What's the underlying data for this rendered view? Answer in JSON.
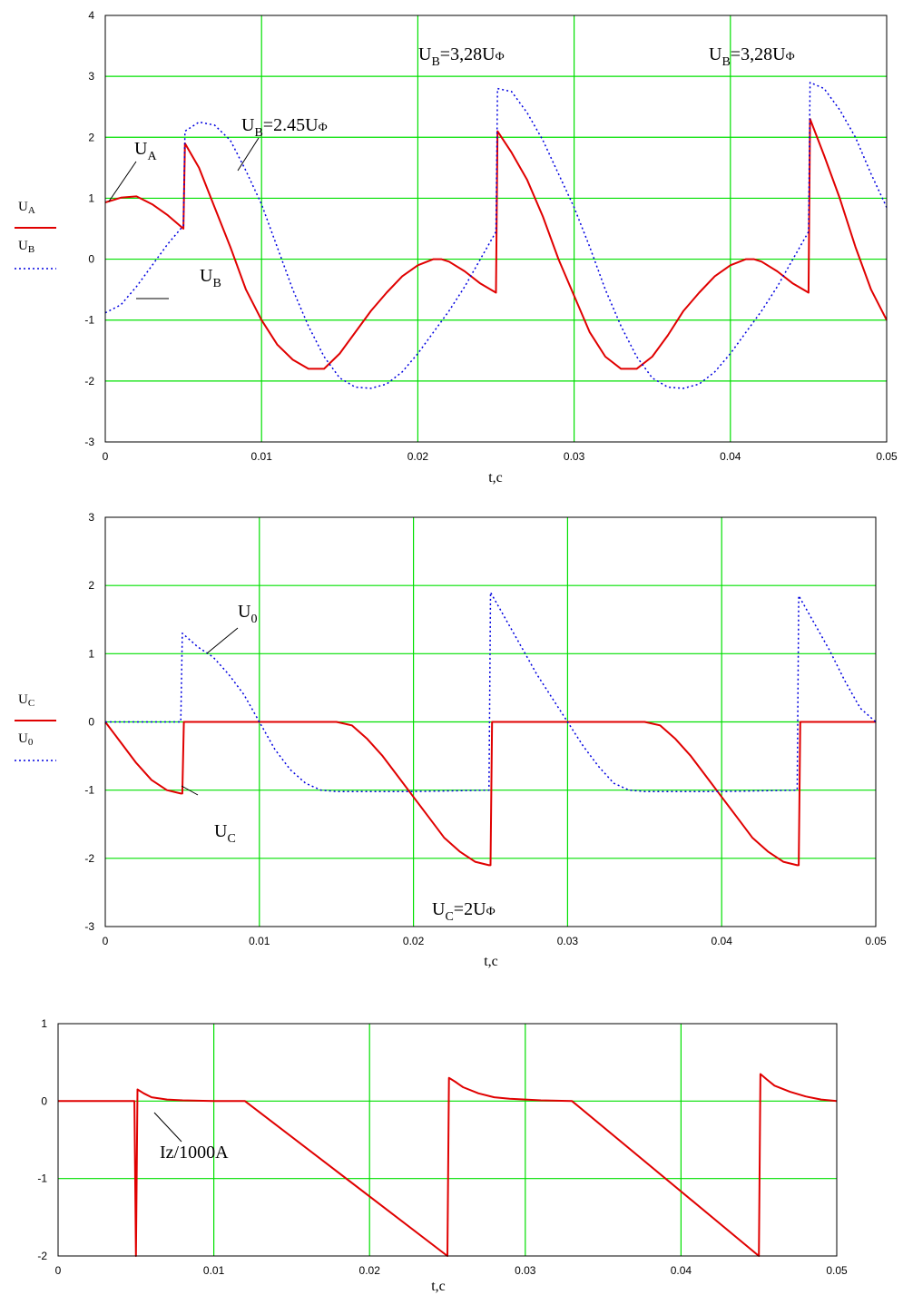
{
  "chart_data": [
    {
      "type": "line",
      "xlabel": "t,c",
      "xlim": [
        0,
        0.05
      ],
      "ylim": [
        -3,
        4
      ],
      "xticks": [
        "0",
        "0.01",
        "0.02",
        "0.03",
        "0.04",
        "0.05"
      ],
      "yticks": [
        "-3",
        "-2",
        "-1",
        "0",
        "1",
        "2",
        "3",
        "4"
      ],
      "grid": true,
      "legend": {
        "placement": "left",
        "entries": [
          {
            "label_main": "U",
            "label_sub": "A",
            "style": "solid",
            "color": "#e00000"
          },
          {
            "label_main": "U",
            "label_sub": "B",
            "style": "dotted",
            "color": "#0000e0"
          }
        ]
      },
      "annotations": [
        {
          "main": "U",
          "sub": "A"
        },
        {
          "main": "U",
          "sub": "B"
        },
        {
          "main": "U",
          "sub": "B",
          "rest": "=2.45U",
          "tail": "Ф"
        },
        {
          "main": "U",
          "sub": "B",
          "rest": "=3,28U",
          "tail": "Ф"
        },
        {
          "main": "U",
          "sub": "B",
          "rest": "=3,28U",
          "tail": "Ф"
        }
      ],
      "series": [
        {
          "color": "#e00000",
          "style": "solid",
          "x": [
            0,
            0.001,
            0.002,
            0.003,
            0.004,
            0.005,
            0.0051,
            0.006,
            0.007,
            0.008,
            0.009,
            0.01,
            0.011,
            0.012,
            0.013,
            0.014,
            0.015,
            0.016,
            0.017,
            0.018,
            0.019,
            0.02,
            0.021,
            0.0215,
            0.022,
            0.023,
            0.024,
            0.025,
            0.0251,
            0.026,
            0.027,
            0.028,
            0.029,
            0.03,
            0.031,
            0.032,
            0.033,
            0.034,
            0.035,
            0.036,
            0.037,
            0.038,
            0.039,
            0.04,
            0.041,
            0.0415,
            0.042,
            0.043,
            0.044,
            0.045,
            0.0451,
            0.046,
            0.047,
            0.048,
            0.049,
            0.05
          ],
          "y": [
            0.93,
            1.01,
            1.03,
            0.9,
            0.72,
            0.5,
            1.9,
            1.5,
            0.85,
            0.2,
            -0.5,
            -1.0,
            -1.4,
            -1.65,
            -1.8,
            -1.8,
            -1.55,
            -1.2,
            -0.85,
            -0.55,
            -0.28,
            -0.1,
            0,
            0,
            -0.04,
            -0.2,
            -0.4,
            -0.55,
            2.1,
            1.75,
            1.3,
            0.7,
            0,
            -0.6,
            -1.2,
            -1.6,
            -1.8,
            -1.8,
            -1.6,
            -1.25,
            -0.85,
            -0.55,
            -0.28,
            -0.1,
            0,
            0,
            -0.04,
            -0.2,
            -0.4,
            -0.55,
            2.3,
            1.7,
            1.0,
            0.2,
            -0.5,
            -1.0
          ]
        },
        {
          "color": "#0000e0",
          "style": "dotted",
          "x": [
            0,
            0.001,
            0.002,
            0.003,
            0.004,
            0.005,
            0.0051,
            0.006,
            0.007,
            0.008,
            0.009,
            0.01,
            0.011,
            0.012,
            0.013,
            0.014,
            0.015,
            0.016,
            0.017,
            0.018,
            0.019,
            0.02,
            0.021,
            0.022,
            0.023,
            0.024,
            0.025,
            0.0251,
            0.026,
            0.027,
            0.028,
            0.029,
            0.03,
            0.031,
            0.032,
            0.033,
            0.034,
            0.035,
            0.036,
            0.037,
            0.038,
            0.039,
            0.04,
            0.041,
            0.042,
            0.043,
            0.044,
            0.045,
            0.0451,
            0.046,
            0.047,
            0.048,
            0.049,
            0.05
          ],
          "y": [
            -0.88,
            -0.75,
            -0.45,
            -0.1,
            0.25,
            0.55,
            2.1,
            2.25,
            2.2,
            1.95,
            1.45,
            0.9,
            0.2,
            -0.5,
            -1.1,
            -1.6,
            -1.95,
            -2.1,
            -2.12,
            -2.05,
            -1.85,
            -1.55,
            -1.2,
            -0.85,
            -0.45,
            0.0,
            0.45,
            2.8,
            2.75,
            2.4,
            1.95,
            1.4,
            0.85,
            0.2,
            -0.5,
            -1.1,
            -1.6,
            -1.95,
            -2.1,
            -2.12,
            -2.05,
            -1.85,
            -1.55,
            -1.2,
            -0.85,
            -0.45,
            0.0,
            0.45,
            2.9,
            2.8,
            2.45,
            2.0,
            1.4,
            0.85
          ]
        }
      ]
    },
    {
      "type": "line",
      "xlabel": "t,c",
      "xlim": [
        0,
        0.05
      ],
      "ylim": [
        -3,
        3
      ],
      "xticks": [
        "0",
        "0.01",
        "0.02",
        "0.03",
        "0.04",
        "0.05"
      ],
      "yticks": [
        "-3",
        "-2",
        "-1",
        "0",
        "1",
        "2",
        "3"
      ],
      "grid": true,
      "legend": {
        "placement": "left",
        "entries": [
          {
            "label_main": "U",
            "label_sub": "C",
            "style": "solid",
            "color": "#e00000"
          },
          {
            "label_main": "U",
            "label_sub": "0",
            "style": "dotted",
            "color": "#0000e0"
          }
        ]
      },
      "annotations": [
        {
          "main": "U",
          "sub": "0"
        },
        {
          "main": "U",
          "sub": "C"
        },
        {
          "main": "U",
          "sub": "C",
          "rest": "=2U",
          "tail": "Ф"
        }
      ],
      "series": [
        {
          "color": "#e00000",
          "style": "solid",
          "x": [
            0,
            0.001,
            0.002,
            0.003,
            0.004,
            0.0049,
            0.005,
            0.0051,
            0.01,
            0.015,
            0.016,
            0.017,
            0.018,
            0.019,
            0.02,
            0.021,
            0.022,
            0.023,
            0.024,
            0.0249,
            0.025,
            0.0251,
            0.03,
            0.035,
            0.036,
            0.037,
            0.038,
            0.039,
            0.04,
            0.041,
            0.042,
            0.043,
            0.044,
            0.0449,
            0.045,
            0.0451,
            0.05
          ],
          "y": [
            0,
            -0.3,
            -0.6,
            -0.85,
            -1.0,
            -1.05,
            -1.05,
            0,
            0,
            0,
            -0.05,
            -0.25,
            -0.5,
            -0.8,
            -1.1,
            -1.4,
            -1.7,
            -1.9,
            -2.05,
            -2.1,
            -2.1,
            0,
            0,
            0,
            -0.05,
            -0.25,
            -0.5,
            -0.8,
            -1.1,
            -1.4,
            -1.7,
            -1.9,
            -2.05,
            -2.1,
            -2.1,
            0,
            0
          ]
        },
        {
          "color": "#0000e0",
          "style": "dotted",
          "x": [
            0,
            0.004,
            0.0049,
            0.005,
            0.006,
            0.007,
            0.008,
            0.009,
            0.01,
            0.011,
            0.012,
            0.013,
            0.014,
            0.015,
            0.02,
            0.0249,
            0.025,
            0.026,
            0.027,
            0.028,
            0.029,
            0.03,
            0.031,
            0.032,
            0.033,
            0.034,
            0.035,
            0.04,
            0.0449,
            0.045,
            0.046,
            0.047,
            0.048,
            0.049,
            0.05
          ],
          "y": [
            0,
            0,
            0,
            1.3,
            1.1,
            0.95,
            0.7,
            0.4,
            0,
            -0.4,
            -0.7,
            -0.9,
            -1.0,
            -1.02,
            -1.02,
            -1.0,
            1.9,
            1.5,
            1.1,
            0.7,
            0.35,
            0,
            -0.35,
            -0.65,
            -0.9,
            -1.0,
            -1.02,
            -1.02,
            -1.0,
            1.85,
            1.45,
            1.05,
            0.6,
            0.2,
            0
          ]
        }
      ]
    },
    {
      "type": "line",
      "xlabel": "t,c",
      "xlim": [
        0,
        0.05
      ],
      "ylim": [
        -2,
        1
      ],
      "xticks": [
        "0",
        "0.01",
        "0.02",
        "0.03",
        "0.04",
        "0.05"
      ],
      "yticks": [
        "-2",
        "-1",
        "0",
        "1"
      ],
      "grid": true,
      "annotations": [
        {
          "main": "Iz/1000A"
        }
      ],
      "series": [
        {
          "color": "#e00000",
          "style": "solid",
          "x": [
            0,
            0.0049,
            0.005,
            0.0051,
            0.0055,
            0.006,
            0.007,
            0.008,
            0.009,
            0.01,
            0.012,
            0.025,
            0.0251,
            0.0255,
            0.026,
            0.027,
            0.028,
            0.029,
            0.03,
            0.031,
            0.033,
            0.045,
            0.0451,
            0.0455,
            0.046,
            0.047,
            0.048,
            0.049,
            0.05
          ],
          "y": [
            0,
            0,
            -2,
            0.15,
            0.1,
            0.05,
            0.02,
            0.01,
            0.005,
            0,
            0,
            -2,
            0.3,
            0.25,
            0.18,
            0.1,
            0.05,
            0.03,
            0.02,
            0.01,
            0,
            -2,
            0.35,
            0.28,
            0.2,
            0.12,
            0.06,
            0.02,
            0
          ]
        }
      ]
    }
  ]
}
